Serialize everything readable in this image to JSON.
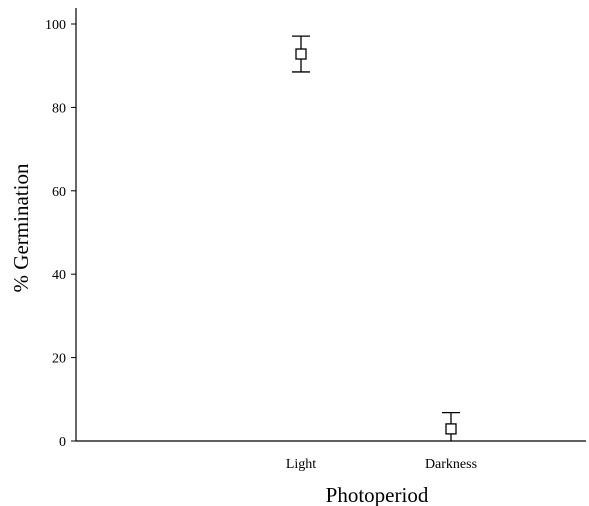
{
  "chart_data": {
    "type": "scatter",
    "title": "",
    "xlabel": "Photoperiod",
    "ylabel": "% Germination",
    "categories": [
      "Light",
      "Darkness"
    ],
    "series": [
      {
        "values": [
          92.8,
          2.9
        ],
        "error_low": [
          88.5,
          0
        ],
        "error_high": [
          97.1,
          6.8
        ]
      }
    ],
    "ylim": [
      0,
      105
    ],
    "yticks": [
      "0",
      "20",
      "40",
      "60",
      "80",
      "100"
    ],
    "marker": "open-square",
    "grid": false,
    "legend": "none"
  }
}
